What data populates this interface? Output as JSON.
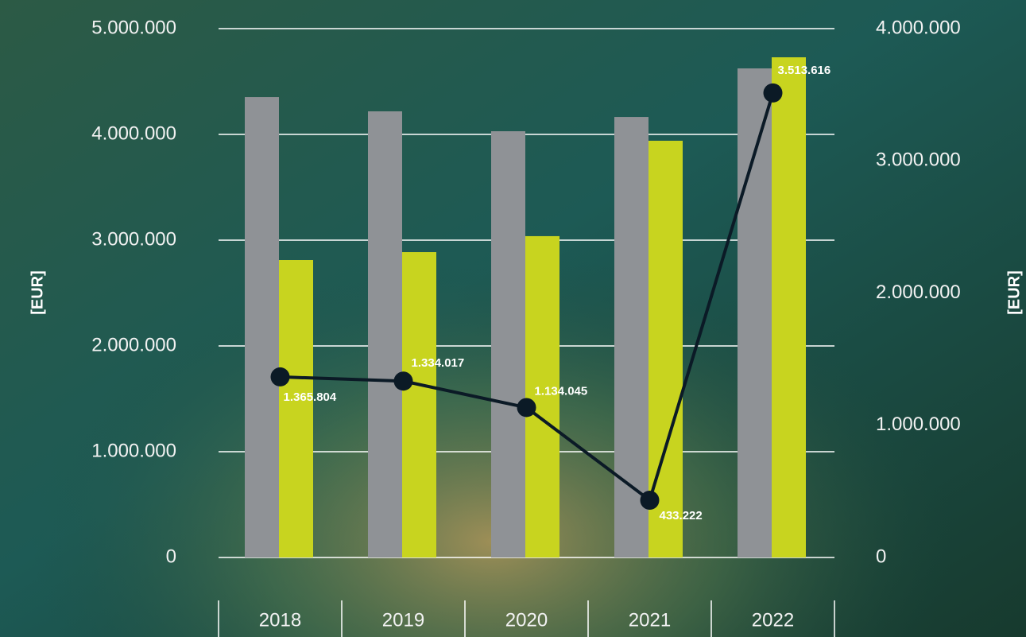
{
  "chart_data": {
    "type": "bar-line",
    "y_label": "[EUR]",
    "y2_label": "[EUR]",
    "categories": [
      "2018",
      "2019",
      "2020",
      "2021",
      "2022"
    ],
    "series": [
      {
        "color": "#8f9296",
        "type": "bar",
        "values": [
          4353000,
          4218000,
          4030000,
          4165000,
          4624000
        ]
      },
      {
        "color": "#c8d41f",
        "type": "bar",
        "values": [
          2812000,
          2887000,
          3038000,
          3940000,
          4729000
        ]
      },
      {
        "color": "#0b1a26",
        "type": "line",
        "axis": "y2",
        "values": [
          1365804,
          1334017,
          1134045,
          433222,
          3513616
        ],
        "value_labels": [
          "1.365.804",
          "1.334.017",
          "1.134.045",
          "433.222",
          "3.513.616"
        ]
      }
    ],
    "ylim": [
      0,
      5000000
    ],
    "yticks": [
      {
        "value": 0,
        "label": "0"
      },
      {
        "value": 1000000,
        "label": "1.000.000"
      },
      {
        "value": 2000000,
        "label": "2.000.000"
      },
      {
        "value": 3000000,
        "label": "3.000.000"
      },
      {
        "value": 4000000,
        "label": "4.000.000"
      },
      {
        "value": 5000000,
        "label": "5.000.000"
      }
    ],
    "y2lim": [
      0,
      4000000
    ],
    "y2ticks": [
      {
        "value": 0,
        "label": "0"
      },
      {
        "value": 1000000,
        "label": "1.000.000"
      },
      {
        "value": 2000000,
        "label": "2.000.000"
      },
      {
        "value": 3000000,
        "label": "3.000.000"
      },
      {
        "value": 4000000,
        "label": "4.000.000"
      }
    ],
    "grid": true
  }
}
